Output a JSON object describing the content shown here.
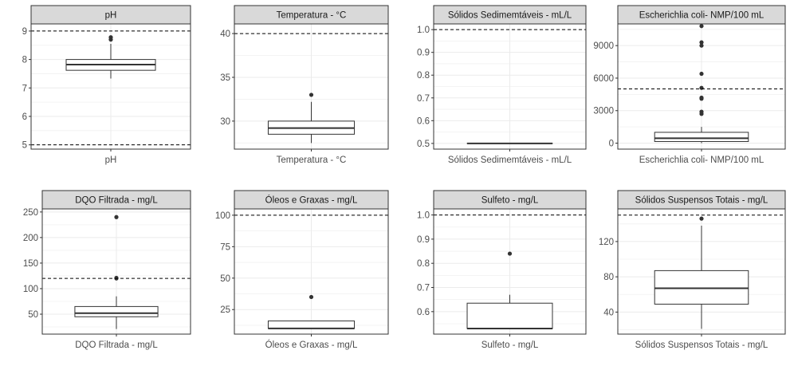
{
  "chart_data": [
    {
      "type": "boxplot",
      "strip_title": "pH",
      "xlabel": "pH",
      "ylim": [
        4.85,
        9.25
      ],
      "yticks": [
        5,
        6,
        7,
        8,
        9
      ],
      "box": {
        "min": 7.33,
        "q1": 7.62,
        "median": 7.82,
        "q3": 8.0,
        "max": 8.55
      },
      "outliers": [
        8.7,
        8.78
      ],
      "reference_lines": [
        5,
        9
      ],
      "grid": true
    },
    {
      "type": "boxplot",
      "strip_title": "Temperatura - °C",
      "xlabel": "Temperatura - °C",
      "ylim": [
        26.8,
        41.1
      ],
      "yticks": [
        30,
        35,
        40
      ],
      "box": {
        "min": 27.5,
        "q1": 28.5,
        "median": 29.2,
        "q3": 30.0,
        "max": 32.2
      },
      "outliers": [
        33.0
      ],
      "reference_lines": [
        40
      ],
      "grid": true
    },
    {
      "type": "boxplot",
      "strip_title": "Sólidos Sedimemtáveis - mL/L",
      "xlabel": "Sólidos Sedimemtáveis - mL/L",
      "ylim": [
        0.475,
        1.025
      ],
      "yticks": [
        0.5,
        0.6,
        0.7,
        0.8,
        0.9,
        1.0
      ],
      "ytick_labels": [
        "0.5",
        "0.6",
        "0.7",
        "0.8",
        "0.9",
        "1.0"
      ],
      "box": {
        "min": 0.5,
        "q1": 0.5,
        "median": 0.5,
        "q3": 0.5,
        "max": 0.5
      },
      "outliers": [],
      "reference_lines": [
        1.0
      ],
      "grid": true
    },
    {
      "type": "boxplot",
      "strip_title": "Escherichlia coli- NMP/100 mL",
      "xlabel": "Escherichlia coli- NMP/100 mL",
      "ylim": [
        -550,
        11000
      ],
      "yticks": [
        0,
        3000,
        6000,
        9000
      ],
      "box": {
        "min": 0,
        "q1": 150,
        "median": 450,
        "q3": 1000,
        "max": 1500
      },
      "outliers": [
        2700,
        2900,
        4100,
        4200,
        5100,
        6400,
        9000,
        9300,
        10800
      ],
      "reference_lines": [
        5000
      ],
      "grid": true
    },
    {
      "type": "boxplot",
      "strip_title": "DQO Filtrada - mg/L",
      "xlabel": "DQO Filtrada - mg/L",
      "ylim": [
        11,
        256
      ],
      "yticks": [
        50,
        100,
        150,
        200,
        250
      ],
      "box": {
        "min": 21,
        "q1": 45,
        "median": 52,
        "q3": 65,
        "max": 85
      },
      "outliers": [
        120,
        121,
        240
      ],
      "reference_lines": [
        120
      ],
      "grid": true
    },
    {
      "type": "boxplot",
      "strip_title": "Óleos e Graxas - mg/L",
      "xlabel": "Óleos e Graxas - mg/L",
      "ylim": [
        5.5,
        105
      ],
      "yticks": [
        25,
        50,
        75,
        100
      ],
      "box": {
        "min": 10,
        "q1": 10,
        "median": 10,
        "q3": 16,
        "max": 16
      },
      "outliers": [
        35
      ],
      "reference_lines": [
        100
      ],
      "grid": true
    },
    {
      "type": "boxplot",
      "strip_title": "Sulfeto - mg/L",
      "xlabel": "Sulfeto - mg/L",
      "ylim": [
        0.507,
        1.025
      ],
      "yticks": [
        0.6,
        0.7,
        0.8,
        0.9,
        1.0
      ],
      "ytick_labels": [
        "0.6",
        "0.7",
        "0.8",
        "0.9",
        "1.0"
      ],
      "box": {
        "min": 0.53,
        "q1": 0.53,
        "median": 0.53,
        "q3": 0.635,
        "max": 0.67
      },
      "outliers": [
        0.84
      ],
      "reference_lines": [
        1.0
      ],
      "grid": true
    },
    {
      "type": "boxplot",
      "strip_title": "Sólidos Suspensos Totais - mg/L",
      "xlabel": "Sólidos Suspensos Totais - mg/L",
      "ylim": [
        15,
        157
      ],
      "yticks": [
        40,
        80,
        120
      ],
      "box": {
        "min": 21,
        "q1": 49,
        "median": 67,
        "q3": 87,
        "max": 138
      },
      "outliers": [
        146
      ],
      "reference_lines": [
        150
      ],
      "grid": true
    }
  ]
}
